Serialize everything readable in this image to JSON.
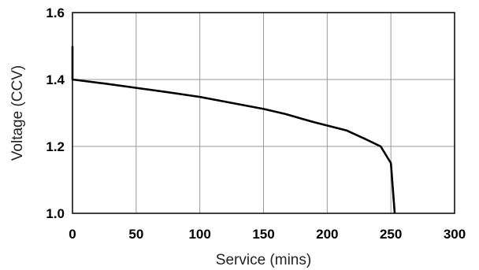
{
  "chart_data": {
    "type": "line",
    "title": "",
    "xlabel": "Service (mins)",
    "ylabel": "Voltage (CCV)",
    "xlim": [
      0,
      300
    ],
    "ylim": [
      1.0,
      1.6
    ],
    "x_ticks": [
      "0",
      "50",
      "100",
      "150",
      "200",
      "250",
      "300"
    ],
    "y_ticks": [
      "1.0",
      "1.2",
      "1.4",
      "1.6"
    ],
    "grid": true,
    "legend": "none",
    "colors": {
      "line": "#000000",
      "grid": "#999999",
      "frame": "#000000"
    },
    "series": [
      {
        "x": [
          0,
          0,
          25,
          50,
          75,
          100,
          125,
          150,
          167,
          190,
          215,
          230,
          242,
          250,
          252,
          253
        ],
        "y": [
          1.5,
          1.4,
          1.388,
          1.375,
          1.362,
          1.348,
          1.33,
          1.312,
          1.297,
          1.272,
          1.248,
          1.222,
          1.2,
          1.15,
          1.05,
          1.0
        ]
      }
    ]
  }
}
